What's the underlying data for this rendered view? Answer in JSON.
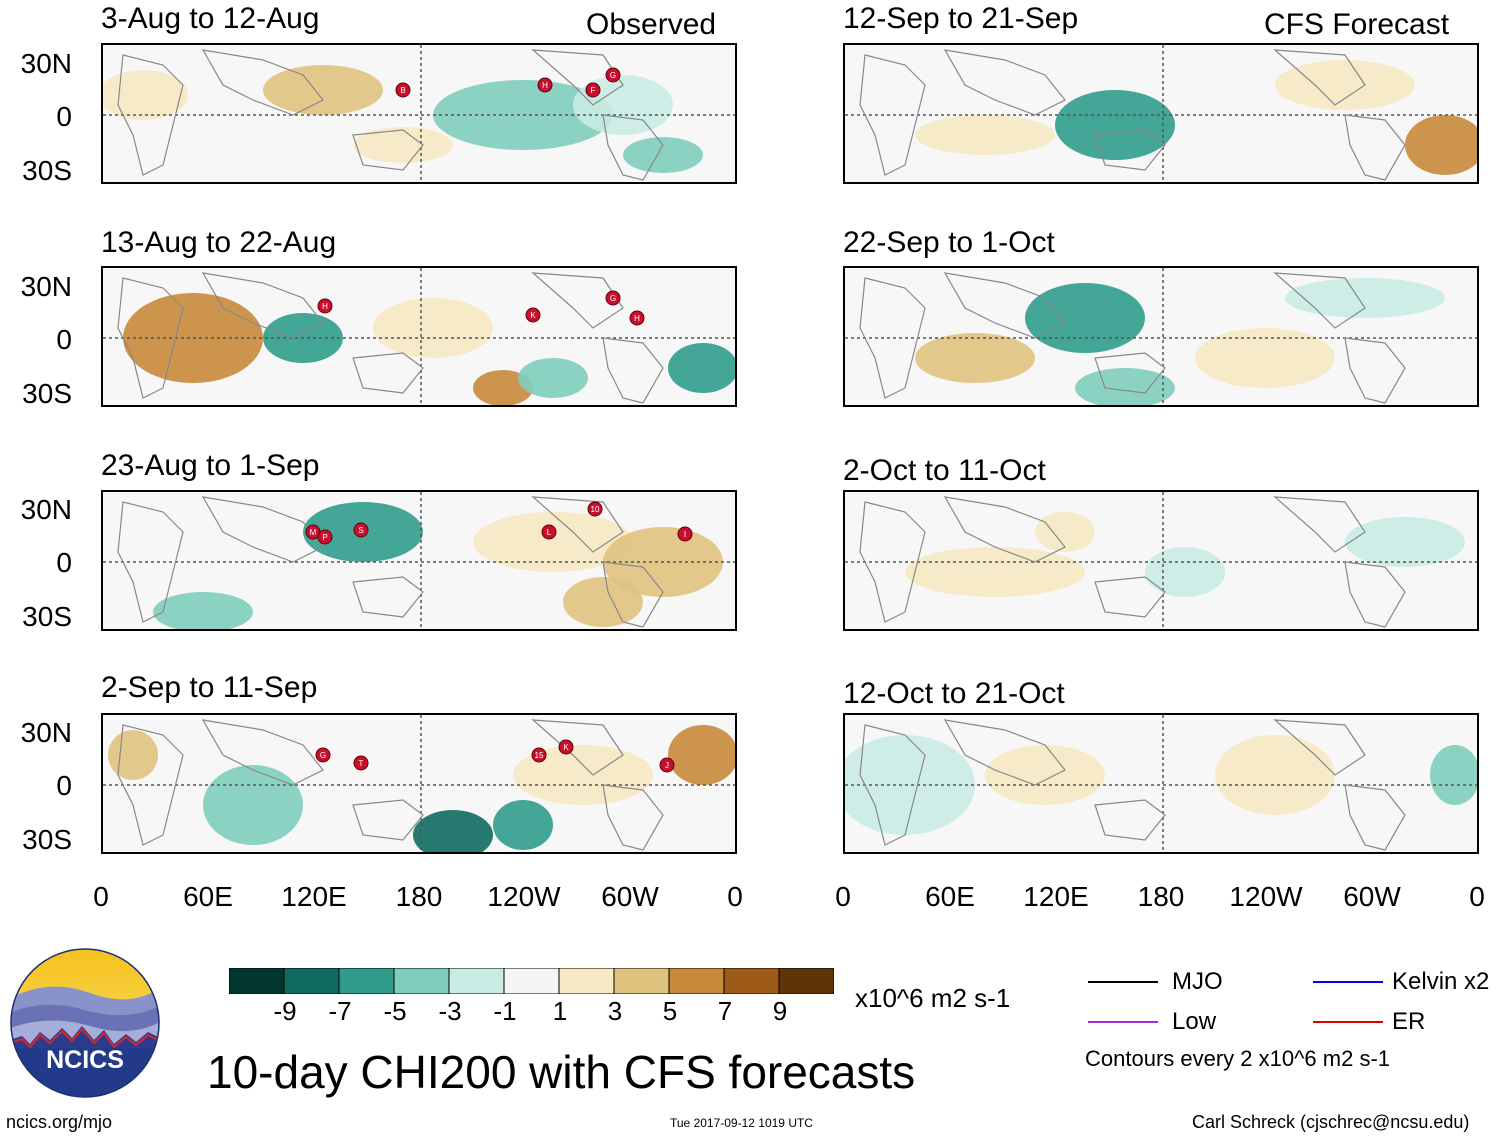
{
  "header": {
    "observed_label": "Observed",
    "forecast_label": "CFS Forecast"
  },
  "panels": {
    "left": [
      {
        "title": "3-Aug to 12-Aug",
        "storms": [
          "B",
          "H",
          "F",
          "G"
        ]
      },
      {
        "title": "13-Aug to 22-Aug",
        "storms": [
          "H",
          "K",
          "G",
          "H"
        ]
      },
      {
        "title": "23-Aug to 1-Sep",
        "storms": [
          "M",
          "P",
          "S",
          "L",
          "10",
          "I"
        ]
      },
      {
        "title": "2-Sep to 11-Sep",
        "storms": [
          "G",
          "T",
          "15",
          "K",
          "J"
        ]
      }
    ],
    "right": [
      {
        "title": "12-Sep to 21-Sep"
      },
      {
        "title": "22-Sep to 1-Oct"
      },
      {
        "title": "2-Oct to 11-Oct"
      },
      {
        "title": "12-Oct to 21-Oct"
      }
    ]
  },
  "axes": {
    "lat_labels": [
      "30N",
      "0",
      "30S"
    ],
    "lon_labels": [
      "0",
      "60E",
      "120E",
      "180",
      "120W",
      "60W",
      "0"
    ]
  },
  "colorbar": {
    "colors": [
      "#01372f",
      "#0f6b5f",
      "#2f9c8c",
      "#7fcdbc",
      "#c8ebe3",
      "#f5f5f5",
      "#f6e8c2",
      "#dfc27e",
      "#c6883a",
      "#9e5a17",
      "#5f3507"
    ],
    "labels": [
      "-9",
      "-7",
      "-5",
      "-3",
      "-1",
      "1",
      "3",
      "5",
      "7",
      "9"
    ],
    "units": "x10^6 m2 s-1"
  },
  "title": "10-day CHI200 with CFS forecasts",
  "legend": {
    "mjo": {
      "label": "MJO",
      "color": "#000000"
    },
    "kelvin": {
      "label": "Kelvin x2",
      "color": "#0000ff"
    },
    "low": {
      "label": "Low",
      "color": "#9b30d9"
    },
    "er": {
      "label": "ER",
      "color": "#e00000"
    },
    "note": "Contours every 2 x10^6 m2 s-1"
  },
  "logo": {
    "text": "NCICS"
  },
  "footer": {
    "url": "ncics.org/mjo",
    "timestamp": "Tue 2017-09-12 1019 UTC",
    "author": "Carl Schreck (cjschrec@ncsu.edu)"
  }
}
